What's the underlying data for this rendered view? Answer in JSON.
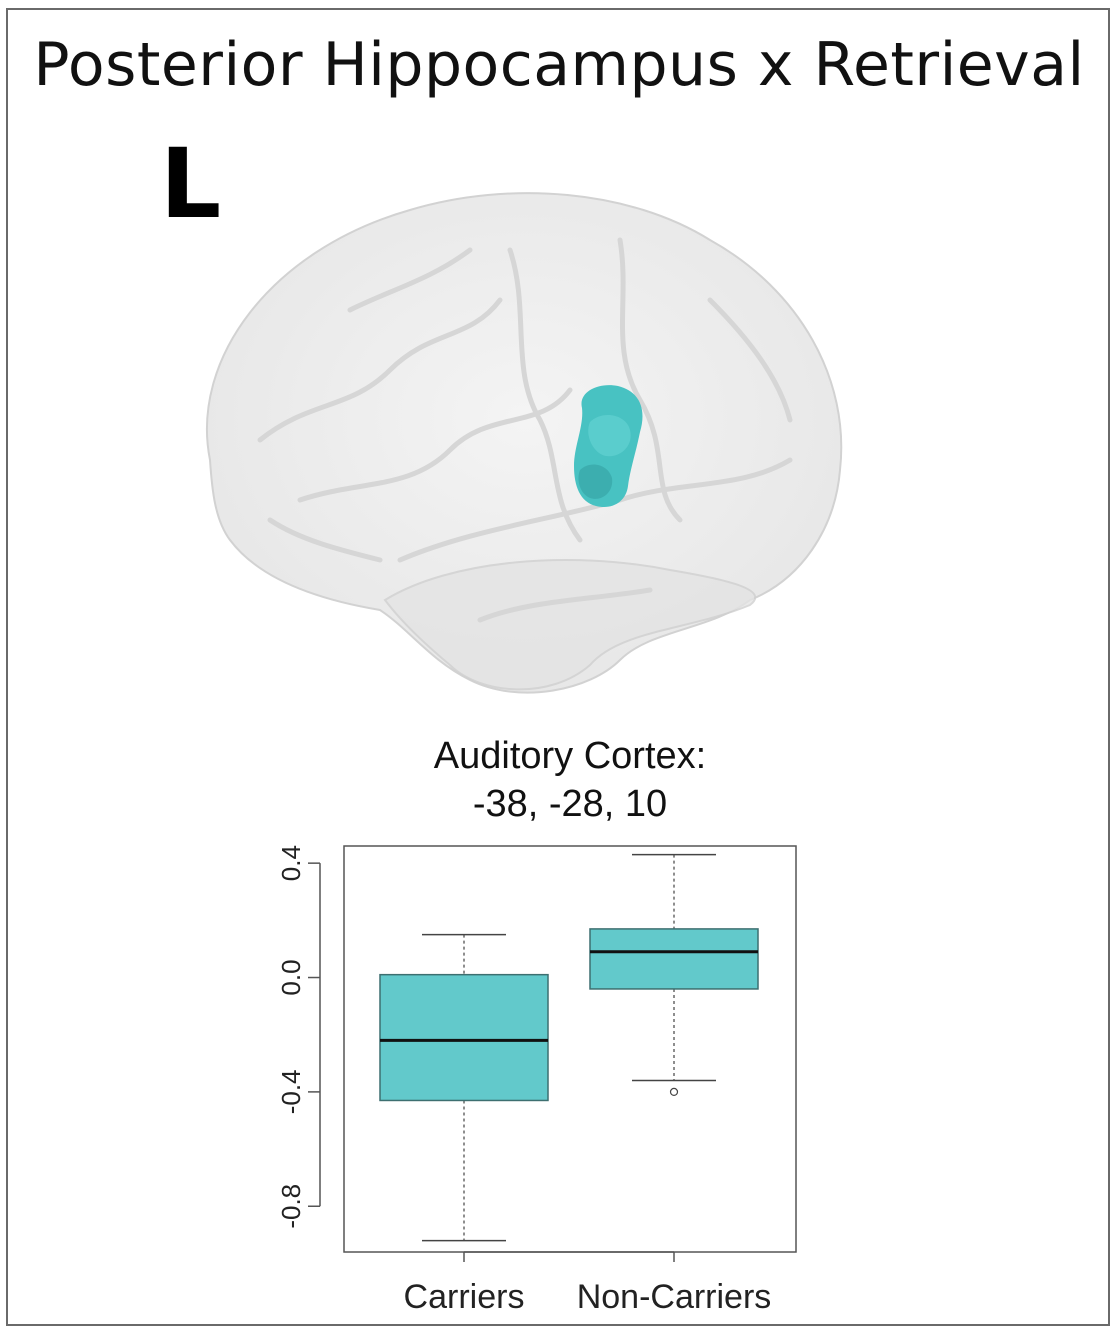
{
  "figure": {
    "title": "Posterior Hippocampus x Retrieval",
    "hemisphere_label": "L",
    "region_name": "Auditory Cortex:",
    "coordinates": "-38, -28, 10"
  },
  "colors": {
    "box_fill": "#62C9CB",
    "region_fill": "#48C2C2",
    "brain_fill": "#ececec",
    "axis": "#555555"
  },
  "chart_data": {
    "type": "box",
    "categories": [
      "Carriers",
      "Non-Carriers"
    ],
    "series": [
      {
        "category": "Carriers",
        "whisker_low": -0.92,
        "q1": -0.43,
        "median": -0.22,
        "q3": 0.01,
        "whisker_high": 0.15,
        "outliers": []
      },
      {
        "category": "Non-Carriers",
        "whisker_low": -0.36,
        "q1": -0.04,
        "median": 0.09,
        "q3": 0.17,
        "whisker_high": 0.43,
        "outliers": [
          -0.4
        ]
      }
    ],
    "yticks": [
      "-0.8",
      "-0.4",
      "0.0",
      "0.4"
    ],
    "ylim": [
      -0.96,
      0.46
    ],
    "xlabel": "",
    "ylabel": "",
    "grid": false
  }
}
